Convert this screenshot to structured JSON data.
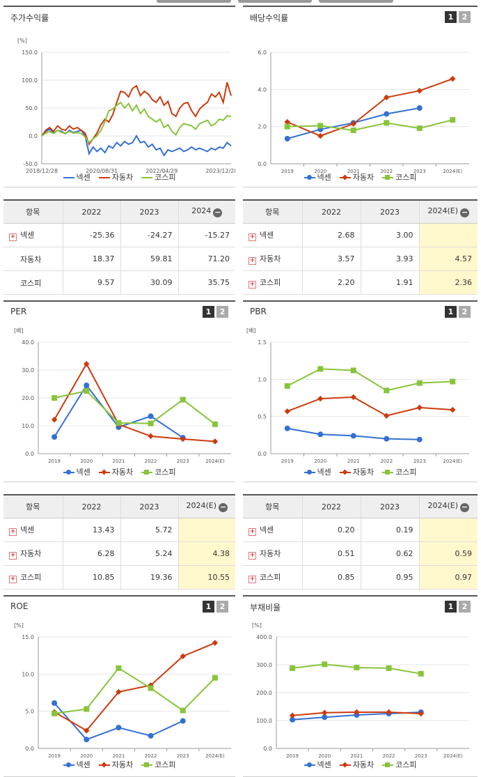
{
  "colors": {
    "nexen": "#3370d4",
    "auto": "#cc3a0e",
    "kospi": "#88c43a"
  },
  "legend": [
    "넥센",
    "자동차",
    "코스피"
  ],
  "panels": {
    "price": {
      "title": "주가수익률",
      "unit": "[%]"
    },
    "div": {
      "title": "배당수익률",
      "btn1": "1",
      "btn2": "2",
      "unit": ""
    },
    "per": {
      "title": "PER",
      "btn1": "1",
      "btn2": "2",
      "unit": "[배]"
    },
    "pbr": {
      "title": "PBR",
      "btn1": "1",
      "btn2": "2",
      "unit": "[배]"
    },
    "roe": {
      "title": "ROE",
      "btn1": "1",
      "btn2": "2",
      "unit": "[%]"
    },
    "debt": {
      "title": "부채비율",
      "btn1": "1",
      "btn2": "2",
      "unit": "[%]"
    }
  },
  "tables": {
    "price": {
      "headers": [
        "항목",
        "2022",
        "2023",
        "2024"
      ],
      "rows": [
        {
          "name": "넥센",
          "plus": true,
          "v": [
            "-25.36",
            "-24.27",
            "-15.27"
          ]
        },
        {
          "name": "자동차",
          "plus": false,
          "v": [
            "18.37",
            "59.81",
            "71.20"
          ]
        },
        {
          "name": "코스피",
          "plus": false,
          "v": [
            "9.57",
            "30.09",
            "35.75"
          ]
        }
      ]
    },
    "div": {
      "headers": [
        "항목",
        "2022",
        "2023",
        "2024(E)"
      ],
      "rows": [
        {
          "name": "넥센",
          "plus": true,
          "v": [
            "2.68",
            "3.00",
            ""
          ]
        },
        {
          "name": "자동차",
          "plus": true,
          "v": [
            "3.57",
            "3.93",
            "4.57"
          ]
        },
        {
          "name": "코스피",
          "plus": true,
          "v": [
            "2.20",
            "1.91",
            "2.36"
          ]
        }
      ]
    },
    "per": {
      "headers": [
        "항목",
        "2022",
        "2023",
        "2024(E)"
      ],
      "rows": [
        {
          "name": "넥센",
          "plus": true,
          "v": [
            "13.43",
            "5.72",
            ""
          ]
        },
        {
          "name": "자동차",
          "plus": true,
          "v": [
            "6.28",
            "5.24",
            "4.38"
          ]
        },
        {
          "name": "코스피",
          "plus": true,
          "v": [
            "10.85",
            "19.36",
            "10.55"
          ]
        }
      ]
    },
    "pbr": {
      "headers": [
        "항목",
        "2022",
        "2023",
        "2024(E)"
      ],
      "rows": [
        {
          "name": "넥센",
          "plus": true,
          "v": [
            "0.20",
            "0.19",
            ""
          ]
        },
        {
          "name": "자동차",
          "plus": true,
          "v": [
            "0.51",
            "0.62",
            "0.59"
          ]
        },
        {
          "name": "코스피",
          "plus": true,
          "v": [
            "0.85",
            "0.95",
            "0.97"
          ]
        }
      ]
    }
  },
  "chart_data": [
    {
      "id": "price",
      "type": "line",
      "title": "주가수익률",
      "ylabel": "[%]",
      "ylim": [
        -50,
        150
      ],
      "yticks": [
        "150.0",
        "100.0",
        "50.0",
        "0.0",
        "-50.0"
      ],
      "xticks": [
        "2018/12/28",
        "2020/08/31",
        "2022/04/29",
        "2023/12/28"
      ],
      "series": [
        {
          "name": "넥센",
          "key": "nexen",
          "values": [
            0,
            8,
            12,
            5,
            10,
            8,
            4,
            10,
            6,
            8,
            10,
            0,
            -32,
            -20,
            -28,
            -22,
            -30,
            -18,
            -22,
            -12,
            -18,
            -10,
            -15,
            -12,
            0,
            -12,
            -10,
            -20,
            -15,
            -25,
            -22,
            -35,
            -25,
            -28,
            -25,
            -22,
            -28,
            -25,
            -20,
            -25,
            -22,
            -25,
            -28,
            -22,
            -25,
            -20,
            -22,
            -12,
            -18
          ]
        },
        {
          "name": "자동차",
          "key": "auto",
          "values": [
            0,
            10,
            15,
            8,
            18,
            12,
            10,
            18,
            12,
            15,
            10,
            5,
            -15,
            -5,
            5,
            20,
            30,
            25,
            38,
            60,
            80,
            78,
            70,
            85,
            90,
            72,
            80,
            75,
            65,
            60,
            70,
            55,
            62,
            40,
            35,
            50,
            58,
            60,
            45,
            35,
            48,
            55,
            60,
            75,
            70,
            78,
            60,
            96,
            72
          ]
        },
        {
          "name": "코스피",
          "key": "kospi",
          "values": [
            0,
            5,
            8,
            4,
            10,
            6,
            5,
            8,
            5,
            6,
            4,
            -2,
            -12,
            -5,
            0,
            10,
            25,
            45,
            48,
            55,
            60,
            50,
            58,
            45,
            55,
            40,
            48,
            35,
            30,
            25,
            30,
            15,
            20,
            8,
            2,
            15,
            22,
            20,
            18,
            12,
            22,
            25,
            28,
            18,
            22,
            30,
            28,
            36,
            35
          ]
        }
      ]
    },
    {
      "id": "div",
      "type": "line",
      "title": "배당수익률",
      "ylim": [
        0,
        6
      ],
      "yticks": [
        "6.0",
        "4.0",
        "2.0",
        "0.0"
      ],
      "categories": [
        "2019",
        "2020",
        "2021",
        "2022",
        "2023",
        "2024(E)"
      ],
      "series": [
        {
          "name": "넥센",
          "key": "nexen",
          "values": [
            1.35,
            1.85,
            2.2,
            2.68,
            3.0,
            null
          ]
        },
        {
          "name": "자동차",
          "key": "auto",
          "values": [
            2.25,
            1.5,
            2.15,
            3.57,
            3.93,
            4.57
          ]
        },
        {
          "name": "코스피",
          "key": "kospi",
          "values": [
            2.0,
            2.05,
            1.8,
            2.2,
            1.91,
            2.36
          ]
        }
      ]
    },
    {
      "id": "per",
      "type": "line",
      "title": "PER",
      "ylabel": "[배]",
      "ylim": [
        0,
        40
      ],
      "yticks": [
        "40.0",
        "30.0",
        "20.0",
        "10.0",
        "0.0"
      ],
      "categories": [
        "2019",
        "2020",
        "2021",
        "2022",
        "2023",
        "2024(E)"
      ],
      "series": [
        {
          "name": "넥센",
          "key": "nexen",
          "values": [
            6.0,
            24.5,
            9.5,
            13.43,
            5.72,
            null
          ]
        },
        {
          "name": "자동차",
          "key": "auto",
          "values": [
            12.2,
            32.2,
            10.5,
            6.28,
            5.24,
            4.38
          ]
        },
        {
          "name": "코스피",
          "key": "kospi",
          "values": [
            20.0,
            22.5,
            11.0,
            10.85,
            19.36,
            10.55
          ]
        }
      ]
    },
    {
      "id": "pbr",
      "type": "line",
      "title": "PBR",
      "ylabel": "[배]",
      "ylim": [
        0,
        1.5
      ],
      "yticks": [
        "1.5",
        "1.0",
        "0.5",
        "0.0"
      ],
      "categories": [
        "2019",
        "2020",
        "2021",
        "2022",
        "2023",
        "2024(E)"
      ],
      "series": [
        {
          "name": "넥센",
          "key": "nexen",
          "values": [
            0.34,
            0.26,
            0.24,
            0.2,
            0.19,
            null
          ]
        },
        {
          "name": "자동차",
          "key": "auto",
          "values": [
            0.57,
            0.74,
            0.76,
            0.51,
            0.62,
            0.59
          ]
        },
        {
          "name": "코스피",
          "key": "kospi",
          "values": [
            0.91,
            1.14,
            1.12,
            0.85,
            0.95,
            0.97
          ]
        }
      ]
    },
    {
      "id": "roe",
      "type": "line",
      "title": "ROE",
      "ylabel": "[%]",
      "ylim": [
        0,
        15
      ],
      "yticks": [
        "15.0",
        "10.0",
        "5.0",
        "0.0"
      ],
      "categories": [
        "2019",
        "2020",
        "2021",
        "2022",
        "2023",
        "2024(E)"
      ],
      "series": [
        {
          "name": "넥센",
          "key": "nexen",
          "values": [
            6.1,
            1.2,
            2.8,
            1.7,
            3.7,
            null
          ]
        },
        {
          "name": "자동차",
          "key": "auto",
          "values": [
            4.9,
            2.4,
            7.6,
            8.5,
            12.4,
            14.2
          ]
        },
        {
          "name": "코스피",
          "key": "kospi",
          "values": [
            4.7,
            5.3,
            10.8,
            8.1,
            5.1,
            9.5
          ]
        }
      ]
    },
    {
      "id": "debt",
      "type": "line",
      "title": "부채비율",
      "ylabel": "[%]",
      "ylim": [
        0,
        400
      ],
      "yticks": [
        "400.0",
        "300.0",
        "200.0",
        "100.0",
        "0.0"
      ],
      "categories": [
        "2019",
        "2020",
        "2021",
        "2022",
        "2023",
        "2024(E)"
      ],
      "series": [
        {
          "name": "넥센",
          "key": "nexen",
          "values": [
            103,
            112,
            120,
            125,
            130,
            null
          ]
        },
        {
          "name": "자동차",
          "key": "auto",
          "values": [
            118,
            128,
            130,
            130,
            125,
            null
          ]
        },
        {
          "name": "코스피",
          "key": "kospi",
          "values": [
            288,
            302,
            290,
            288,
            268,
            null
          ]
        }
      ]
    }
  ]
}
